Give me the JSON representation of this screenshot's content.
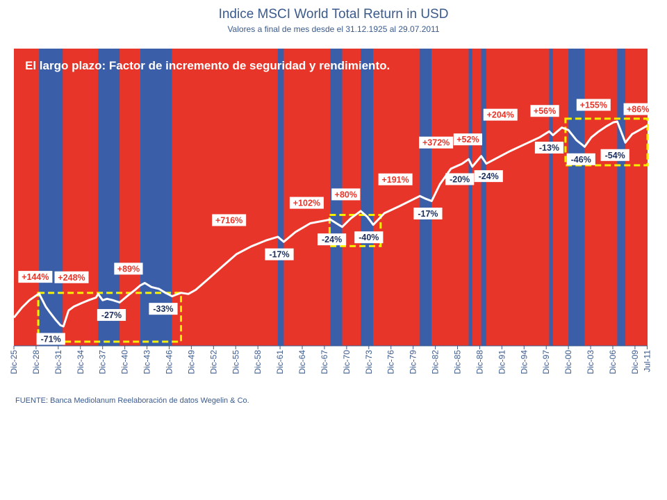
{
  "header": {
    "title": "Indice MSCI World Total Return in USD",
    "subtitle": "Valores a final de mes desde el 31.12.1925 al 29.07.2011"
  },
  "footer": {
    "source": "FUENTE: Banca Mediolanum Reelaboración de datos Wegelin & Co."
  },
  "chart_data": {
    "type": "line",
    "title": "El largo plazo: Factor de incremento de seguridad y rendimiento.",
    "scale": "log",
    "xlim": [
      1925.9,
      2011.6
    ],
    "x_tick_labels": [
      "Dic-25",
      "Dic-28",
      "Dic-31",
      "Dic-34",
      "Dic-37",
      "Dic-40",
      "Dic-43",
      "Dic-46",
      "Dic-49",
      "Dic-52",
      "Dic-55",
      "Dic-58",
      "Dic-61",
      "Dic-64",
      "Dic-67",
      "Dic-70",
      "Dic-73",
      "Dic-76",
      "Dic-79",
      "Dic-82",
      "Dic-85",
      "Dic-88",
      "Dic-91",
      "Dic-94",
      "Dic-97",
      "Dic-00",
      "Dic-03",
      "Dic-06",
      "Dic-09",
      "Jul-11"
    ],
    "x_tick_years": [
      1925.9,
      1928.9,
      1931.9,
      1934.9,
      1937.9,
      1940.9,
      1943.9,
      1946.9,
      1949.9,
      1952.9,
      1955.9,
      1958.9,
      1961.9,
      1964.9,
      1967.9,
      1970.9,
      1973.9,
      1976.9,
      1979.9,
      1982.9,
      1985.9,
      1988.9,
      1991.9,
      1994.9,
      1997.9,
      2000.9,
      2003.9,
      2006.9,
      2009.9,
      2011.55
    ],
    "bear_periods": [
      [
        1929.3,
        1932.5
      ],
      [
        1937.3,
        1940.2
      ],
      [
        1943.0,
        1947.3
      ],
      [
        1961.6,
        1962.4
      ],
      [
        1968.7,
        1970.3
      ],
      [
        1972.8,
        1974.5
      ],
      [
        1980.8,
        1982.4
      ],
      [
        1987.4,
        1987.9
      ],
      [
        1989.1,
        1989.8
      ],
      [
        1998.3,
        1998.8
      ],
      [
        2000.9,
        2003.1
      ],
      [
        2007.5,
        2008.6
      ]
    ],
    "series": [
      {
        "name": "MSCI World Total Return",
        "x": [
          1925.9,
          1927.0,
          1928.0,
          1929.3,
          1930.2,
          1930.8,
          1931.6,
          1932.2,
          1932.6,
          1933.3,
          1934.0,
          1935.0,
          1936.0,
          1937.0,
          1937.3,
          1937.9,
          1938.5,
          1939.3,
          1940.2,
          1941.2,
          1942.3,
          1943.0,
          1943.6,
          1944.5,
          1945.5,
          1946.4,
          1947.3,
          1948.5,
          1949.5,
          1950.5,
          1952.0,
          1954.0,
          1956.0,
          1958.0,
          1960.0,
          1961.6,
          1962.4,
          1964.0,
          1966.0,
          1968.7,
          1969.5,
          1970.3,
          1971.5,
          1972.8,
          1973.7,
          1974.5,
          1976.0,
          1978.0,
          1980.8,
          1981.6,
          1982.4,
          1983.5,
          1985.0,
          1986.5,
          1987.4,
          1987.9,
          1989.1,
          1989.8,
          1991.0,
          1993.0,
          1995.0,
          1997.0,
          1998.3,
          1998.8,
          2000.0,
          2000.9,
          2002.0,
          2003.1,
          2004.0,
          2005.0,
          2006.0,
          2007.0,
          2007.5,
          2008.6,
          2009.5,
          2010.5,
          2011.55
        ],
        "y": [
          1.0,
          1.45,
          1.9,
          2.44,
          1.5,
          1.2,
          0.9,
          0.75,
          0.72,
          1.3,
          1.5,
          1.7,
          1.9,
          2.1,
          2.4,
          1.9,
          2.0,
          1.9,
          1.75,
          2.2,
          2.8,
          3.3,
          3.6,
          3.1,
          2.9,
          2.5,
          2.2,
          2.5,
          2.4,
          2.8,
          4.0,
          6.5,
          10.5,
          14.0,
          17.5,
          20.0,
          16.6,
          24.0,
          33.0,
          38.0,
          33.0,
          28.9,
          40.0,
          52.0,
          42.0,
          31.2,
          48.0,
          62.0,
          90.8,
          82.0,
          75.4,
          140.0,
          250.0,
          300.0,
          356.0,
          270.0,
          400.0,
          302.0,
          360.0,
          480.0,
          620.0,
          800.0,
          1000.0,
          870.0,
          1150.0,
          1050.0,
          720.0,
          565.0,
          800.0,
          1000.0,
          1200.0,
          1400.0,
          1440.0,
          660.0,
          900.0,
          1050.0,
          1230.0
        ]
      }
    ],
    "gain_labels": [
      {
        "text": "+144%",
        "x": 1928.8,
        "y": 2.44
      },
      {
        "text": "+248%",
        "x": 1933.7,
        "y": 2.4
      },
      {
        "text": "+89%",
        "x": 1941.4,
        "y": 3.3
      },
      {
        "text": "+716%",
        "x": 1955.0,
        "y": 20.0
      },
      {
        "text": "+102%",
        "x": 1965.5,
        "y": 38.0
      },
      {
        "text": "+80%",
        "x": 1970.8,
        "y": 52.0
      },
      {
        "text": "+191%",
        "x": 1977.5,
        "y": 90.8
      },
      {
        "text": "+372%",
        "x": 1983.0,
        "y": 356.0
      },
      {
        "text": "+52%",
        "x": 1987.3,
        "y": 400.0
      },
      {
        "text": "+204%",
        "x": 1991.7,
        "y": 1000.0
      },
      {
        "text": "+56%",
        "x": 1997.7,
        "y": 1150.0
      },
      {
        "text": "+155%",
        "x": 2004.3,
        "y": 1440.0
      },
      {
        "text": "+86%",
        "x": 2010.3,
        "y": 1230.0
      }
    ],
    "loss_labels": [
      {
        "text": "-71%",
        "x": 1930.9,
        "y": 0.72
      },
      {
        "text": "-27%",
        "x": 1939.1,
        "y": 1.75
      },
      {
        "text": "-33%",
        "x": 1946.1,
        "y": 2.2
      },
      {
        "text": "-17%",
        "x": 1961.8,
        "y": 16.6
      },
      {
        "text": "-24%",
        "x": 1968.9,
        "y": 28.9
      },
      {
        "text": "-40%",
        "x": 1973.9,
        "y": 31.2
      },
      {
        "text": "-17%",
        "x": 1981.9,
        "y": 75.4
      },
      {
        "text": "-20%",
        "x": 1986.2,
        "y": 270.0
      },
      {
        "text": "-24%",
        "x": 1990.1,
        "y": 302.0
      },
      {
        "text": "-13%",
        "x": 1998.3,
        "y": 870.0
      },
      {
        "text": "-46%",
        "x": 2002.6,
        "y": 565.0
      },
      {
        "text": "-54%",
        "x": 2007.2,
        "y": 660.0
      }
    ],
    "highlight_boxes": [
      {
        "x0": 1929.2,
        "x1": 1948.5,
        "y0": 0.72,
        "y1": 2.5
      },
      {
        "x0": 1968.6,
        "x1": 1975.5,
        "y0": 25.0,
        "y1": 45.0
      },
      {
        "x0": 2000.5,
        "x1": 2011.6,
        "y0": 500.0,
        "y1": 1600.0
      }
    ],
    "colors": {
      "bull": "#e8352a",
      "bear": "#3a5fa8",
      "line": "#ffffff",
      "gain_text": "#e8352a",
      "loss_text": "#1c2f5c",
      "highlight": "#f5f000"
    }
  }
}
